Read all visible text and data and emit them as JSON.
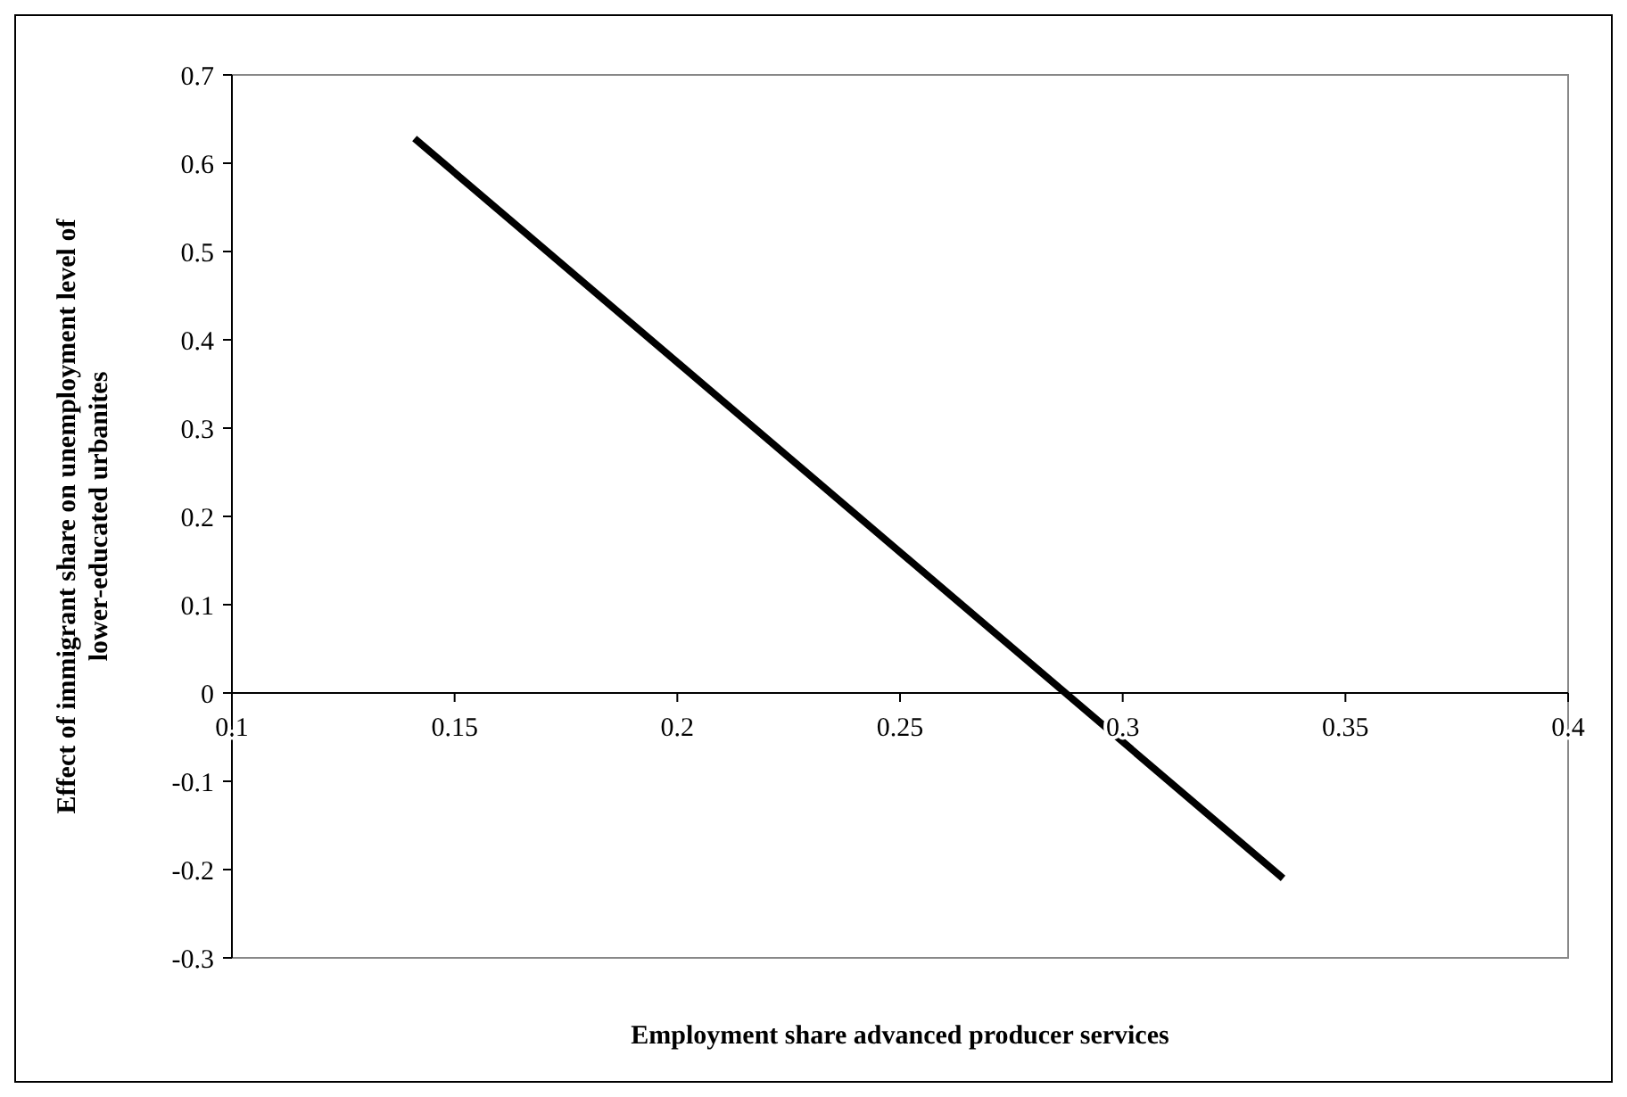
{
  "chart_data": {
    "type": "line",
    "xlabel": "Employment share advanced producer services",
    "ylabel": "Effect of immigrant share on unemployment level of lower-educated urbanites",
    "x": [
      0.141,
      0.336
    ],
    "series": [
      {
        "color": "#000000",
        "values": [
          0.628,
          -0.21
        ]
      }
    ],
    "xlim": [
      0.1,
      0.4
    ],
    "xticks": [
      0.1,
      0.15,
      0.2,
      0.25,
      0.3,
      0.35,
      0.4
    ],
    "ylim": [
      -0.3,
      0.7
    ],
    "yticks": [
      -0.3,
      -0.2,
      -0.1,
      0,
      0.1,
      0.2,
      0.3,
      0.4,
      0.5,
      0.6,
      0.7
    ],
    "grid": false,
    "marker": "none",
    "line_style": "solid"
  }
}
